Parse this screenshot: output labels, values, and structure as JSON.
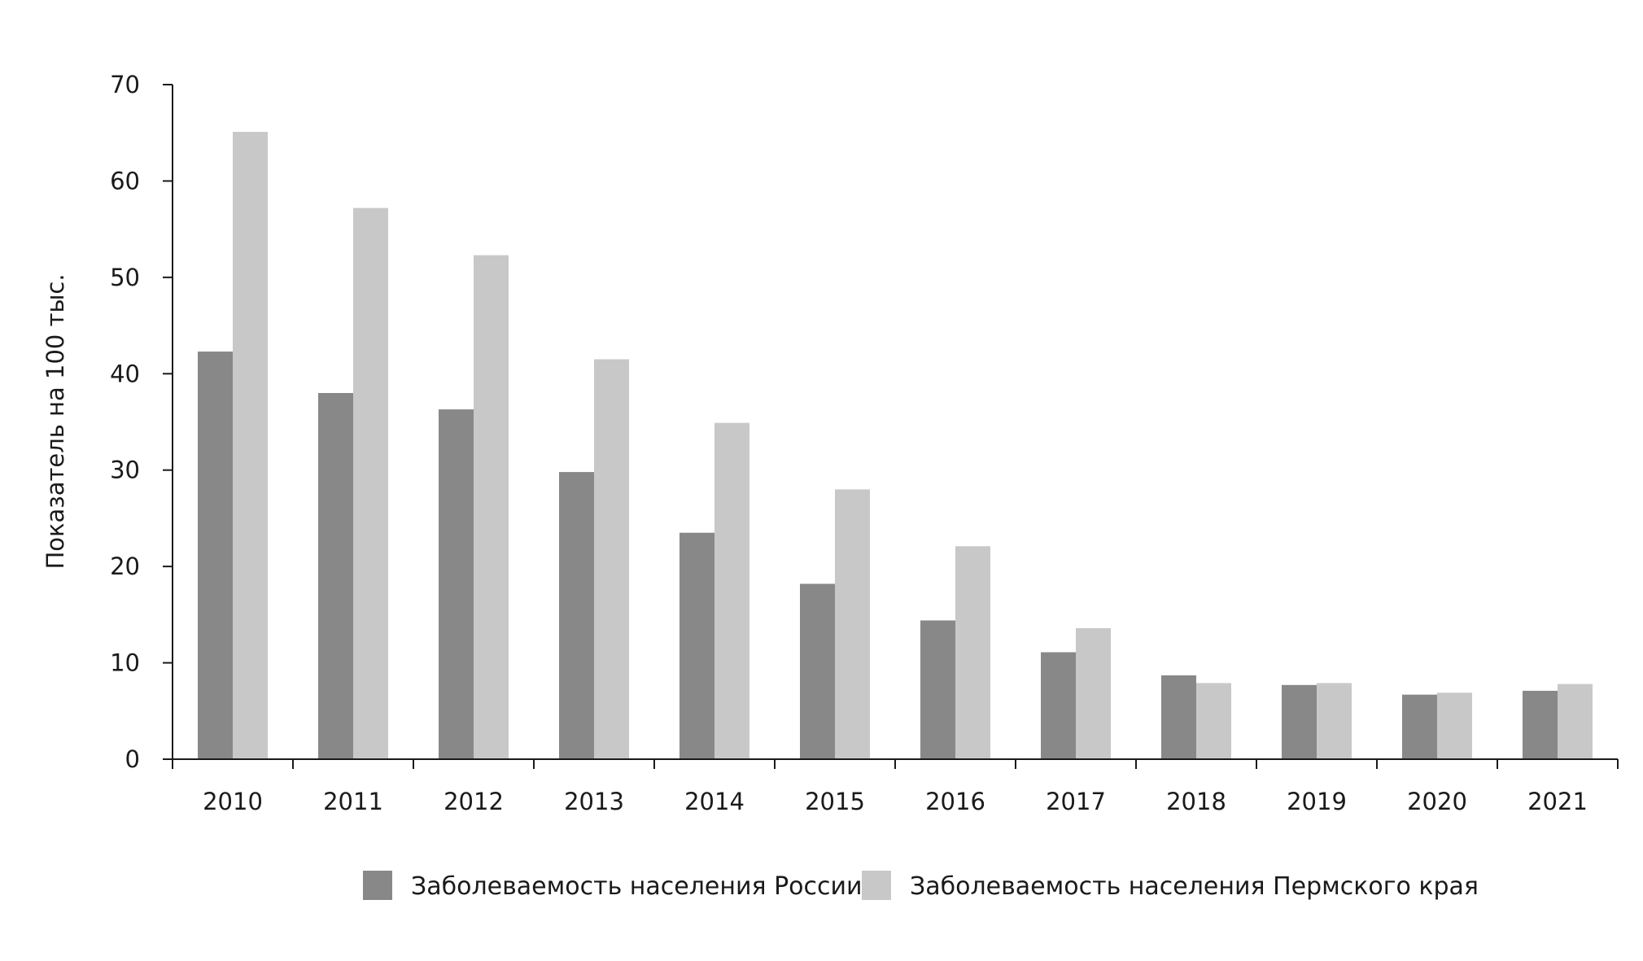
{
  "chart_data": {
    "type": "bar",
    "title": "",
    "xlabel": "",
    "ylabel": "Показатель на 100 тыс.",
    "ylim": [
      0,
      70
    ],
    "yticks": [
      0,
      10,
      20,
      30,
      40,
      50,
      60,
      70
    ],
    "grid": false,
    "legend_position": "bottom",
    "categories": [
      "2010",
      "2011",
      "2012",
      "2013",
      "2014",
      "2015",
      "2016",
      "2017",
      "2018",
      "2019",
      "2020",
      "2021"
    ],
    "series": [
      {
        "name": "Заболеваемость населения России",
        "color": "#888888",
        "values": [
          42.3,
          38.0,
          36.3,
          29.8,
          23.5,
          18.2,
          14.4,
          11.1,
          8.7,
          7.7,
          6.7,
          7.1
        ]
      },
      {
        "name": "Заболеваемость населения Пермского края",
        "color": "#c8c8c8",
        "values": [
          65.1,
          57.2,
          52.3,
          41.5,
          34.9,
          28.0,
          22.1,
          13.6,
          7.9,
          7.9,
          6.9,
          7.8
        ]
      }
    ]
  }
}
